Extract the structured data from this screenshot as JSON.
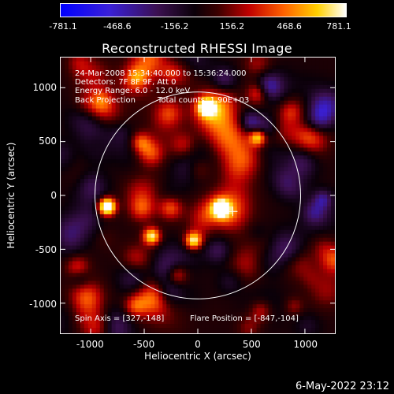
{
  "title": "Reconstructed RHESSI Image",
  "colorbar": {
    "ticks": [
      "-781.1",
      "-468.6",
      "-156.2",
      "156.2",
      "468.6",
      "781.1"
    ],
    "values": [
      -781.1,
      -468.6,
      -156.2,
      156.2,
      468.6,
      781.1
    ]
  },
  "annotations": {
    "line1": "24-Mar-2008 15:34:40.000 to 15:36:24.000",
    "line2": "Detectors: 7F 8F 9F, Att 0",
    "line3": "Energy Range: 6.0 - 12.0 keV",
    "line4a": "Back Projection",
    "line4b": "Total counts: 1.90E+03",
    "spin_axis": "Spin Axis = [327,-148]",
    "flare_position": "Flare Position = [-847,-104]"
  },
  "footer_timestamp": "6-May-2022 23:12",
  "colors": {
    "low": "#0000ff",
    "mid": "#000000",
    "high": "#ffffff",
    "limb": "#ffffff"
  },
  "chart_data": {
    "type": "heatmap",
    "title": "Reconstructed RHESSI Image",
    "xlabel": "Heliocentric X (arcsec)",
    "ylabel": "Heliocentric Y (arcsec)",
    "xlim": [
      -1280,
      1280
    ],
    "ylim": [
      -1280,
      1280
    ],
    "xticks": [
      "-1000",
      "-500",
      "0",
      "500",
      "1000"
    ],
    "xtick_values": [
      -1000,
      -500,
      0,
      500,
      1000
    ],
    "yticks": [
      "1000",
      "500",
      "0",
      "-500",
      "-1000"
    ],
    "ytick_values": [
      1000,
      500,
      0,
      -500,
      -1000
    ],
    "color_range": [
      -781.1,
      781.1
    ],
    "solar_limb_radius": 960,
    "solar_limb_center": [
      0,
      0
    ],
    "spin_axis_marker": [
      327,
      -148
    ],
    "bright_sources": [
      {
        "x": -847,
        "y": -104
      },
      {
        "x": -430,
        "y": -380
      },
      {
        "x": -40,
        "y": -420
      },
      {
        "x": 80,
        "y": 820
      },
      {
        "x": 560,
        "y": 540
      },
      {
        "x": 220,
        "y": -120
      }
    ]
  }
}
